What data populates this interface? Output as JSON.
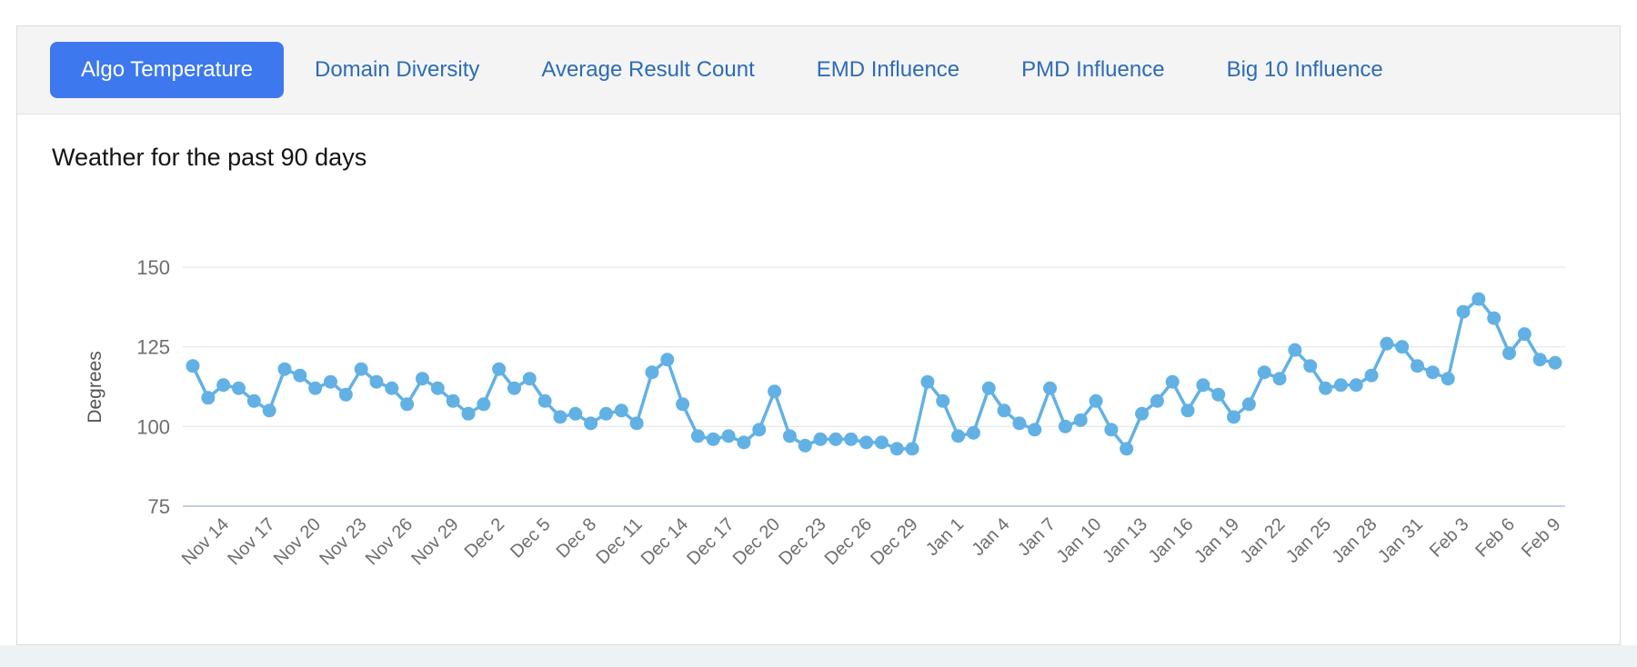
{
  "tabs": [
    {
      "label": "Algo Temperature",
      "active": true
    },
    {
      "label": "Domain Diversity",
      "active": false
    },
    {
      "label": "Average Result Count",
      "active": false
    },
    {
      "label": "EMD Influence",
      "active": false
    },
    {
      "label": "PMD Influence",
      "active": false
    },
    {
      "label": "Big 10 Influence",
      "active": false
    }
  ],
  "chart": {
    "title": "Weather for the past 90 days"
  },
  "colors": {
    "active_tab_bg": "#3d78ee",
    "inactive_tab_text": "#2d6cb5",
    "line": "#62b1e5",
    "grid": "#e6e6e6",
    "axis_line": "#c3cfe6",
    "tick_text": "#6e6e6e",
    "axis_title_text": "#555555"
  },
  "chart_data": {
    "type": "line",
    "title": "Weather for the past 90 days",
    "xlabel": "",
    "ylabel": "Degrees",
    "ylim": [
      75,
      150
    ],
    "y_ticks": [
      150,
      125,
      100,
      75
    ],
    "grid": "horizontal-only",
    "legend": "none",
    "x_tick_labels": [
      "Nov 14",
      "Nov 17",
      "Nov 20",
      "Nov 23",
      "Nov 26",
      "Nov 29",
      "Dec 2",
      "Dec 5",
      "Dec 8",
      "Dec 11",
      "Dec 14",
      "Dec 17",
      "Dec 20",
      "Dec 23",
      "Dec 26",
      "Dec 29",
      "Jan 1",
      "Jan 4",
      "Jan 7",
      "Jan 10",
      "Jan 13",
      "Jan 16",
      "Jan 19",
      "Jan 22",
      "Jan 25",
      "Jan 28",
      "Jan 31",
      "Feb 3",
      "Feb 6",
      "Feb 9"
    ],
    "tick_start_index": 2,
    "tick_every": 3,
    "series": [
      {
        "name": "Algo Temperature (Degrees)",
        "values": [
          119,
          109,
          113,
          112,
          108,
          105,
          118,
          116,
          112,
          114,
          110,
          118,
          114,
          112,
          107,
          115,
          112,
          108,
          104,
          107,
          118,
          112,
          115,
          108,
          103,
          104,
          101,
          104,
          105,
          101,
          117,
          121,
          107,
          97,
          96,
          97,
          95,
          99,
          111,
          97,
          94,
          96,
          96,
          96,
          95,
          95,
          93,
          93,
          114,
          108,
          97,
          98,
          112,
          105,
          101,
          99,
          112,
          100,
          102,
          108,
          99,
          93,
          104,
          108,
          114,
          105,
          113,
          110,
          103,
          107,
          117,
          115,
          124,
          119,
          112,
          113,
          113,
          116,
          126,
          125,
          119,
          117,
          115,
          136,
          140,
          134,
          123,
          129,
          121,
          120
        ]
      }
    ]
  }
}
